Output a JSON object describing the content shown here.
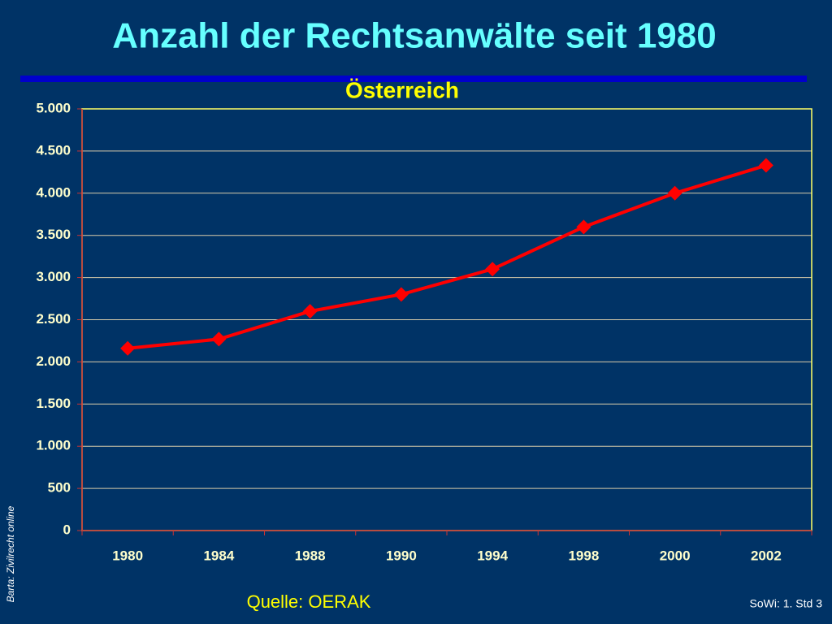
{
  "chart_data": {
    "type": "line",
    "title": "Anzahl der Rechtsanwälte seit 1980",
    "subtitle": "Österreich",
    "source": "Quelle: OERAK",
    "footer": "SoWi: 1. Std 3",
    "side_note": "Barta: Zivilrecht online",
    "categories": [
      "1980",
      "1984",
      "1988",
      "1990",
      "1994",
      "1998",
      "2000",
      "2002"
    ],
    "values": [
      2160,
      2270,
      2600,
      2800,
      3100,
      3600,
      4000,
      4330
    ],
    "color": "#ff0000",
    "ylim": [
      0,
      5000
    ],
    "yticks": [
      0,
      500,
      {
        "value": 1000,
        "label": "1.000"
      },
      {
        "value": 1500,
        "label": "1.500"
      },
      {
        "value": 2000,
        "label": "2.000"
      },
      {
        "value": 2500,
        "label": "2.500"
      },
      {
        "value": 3000,
        "label": "3.000"
      },
      {
        "value": 3500,
        "label": "3.500"
      },
      {
        "value": 4000,
        "label": "4.000"
      },
      {
        "value": 4500,
        "label": "4.500"
      },
      {
        "value": 5000,
        "label": "5.000"
      }
    ],
    "grid": true
  }
}
